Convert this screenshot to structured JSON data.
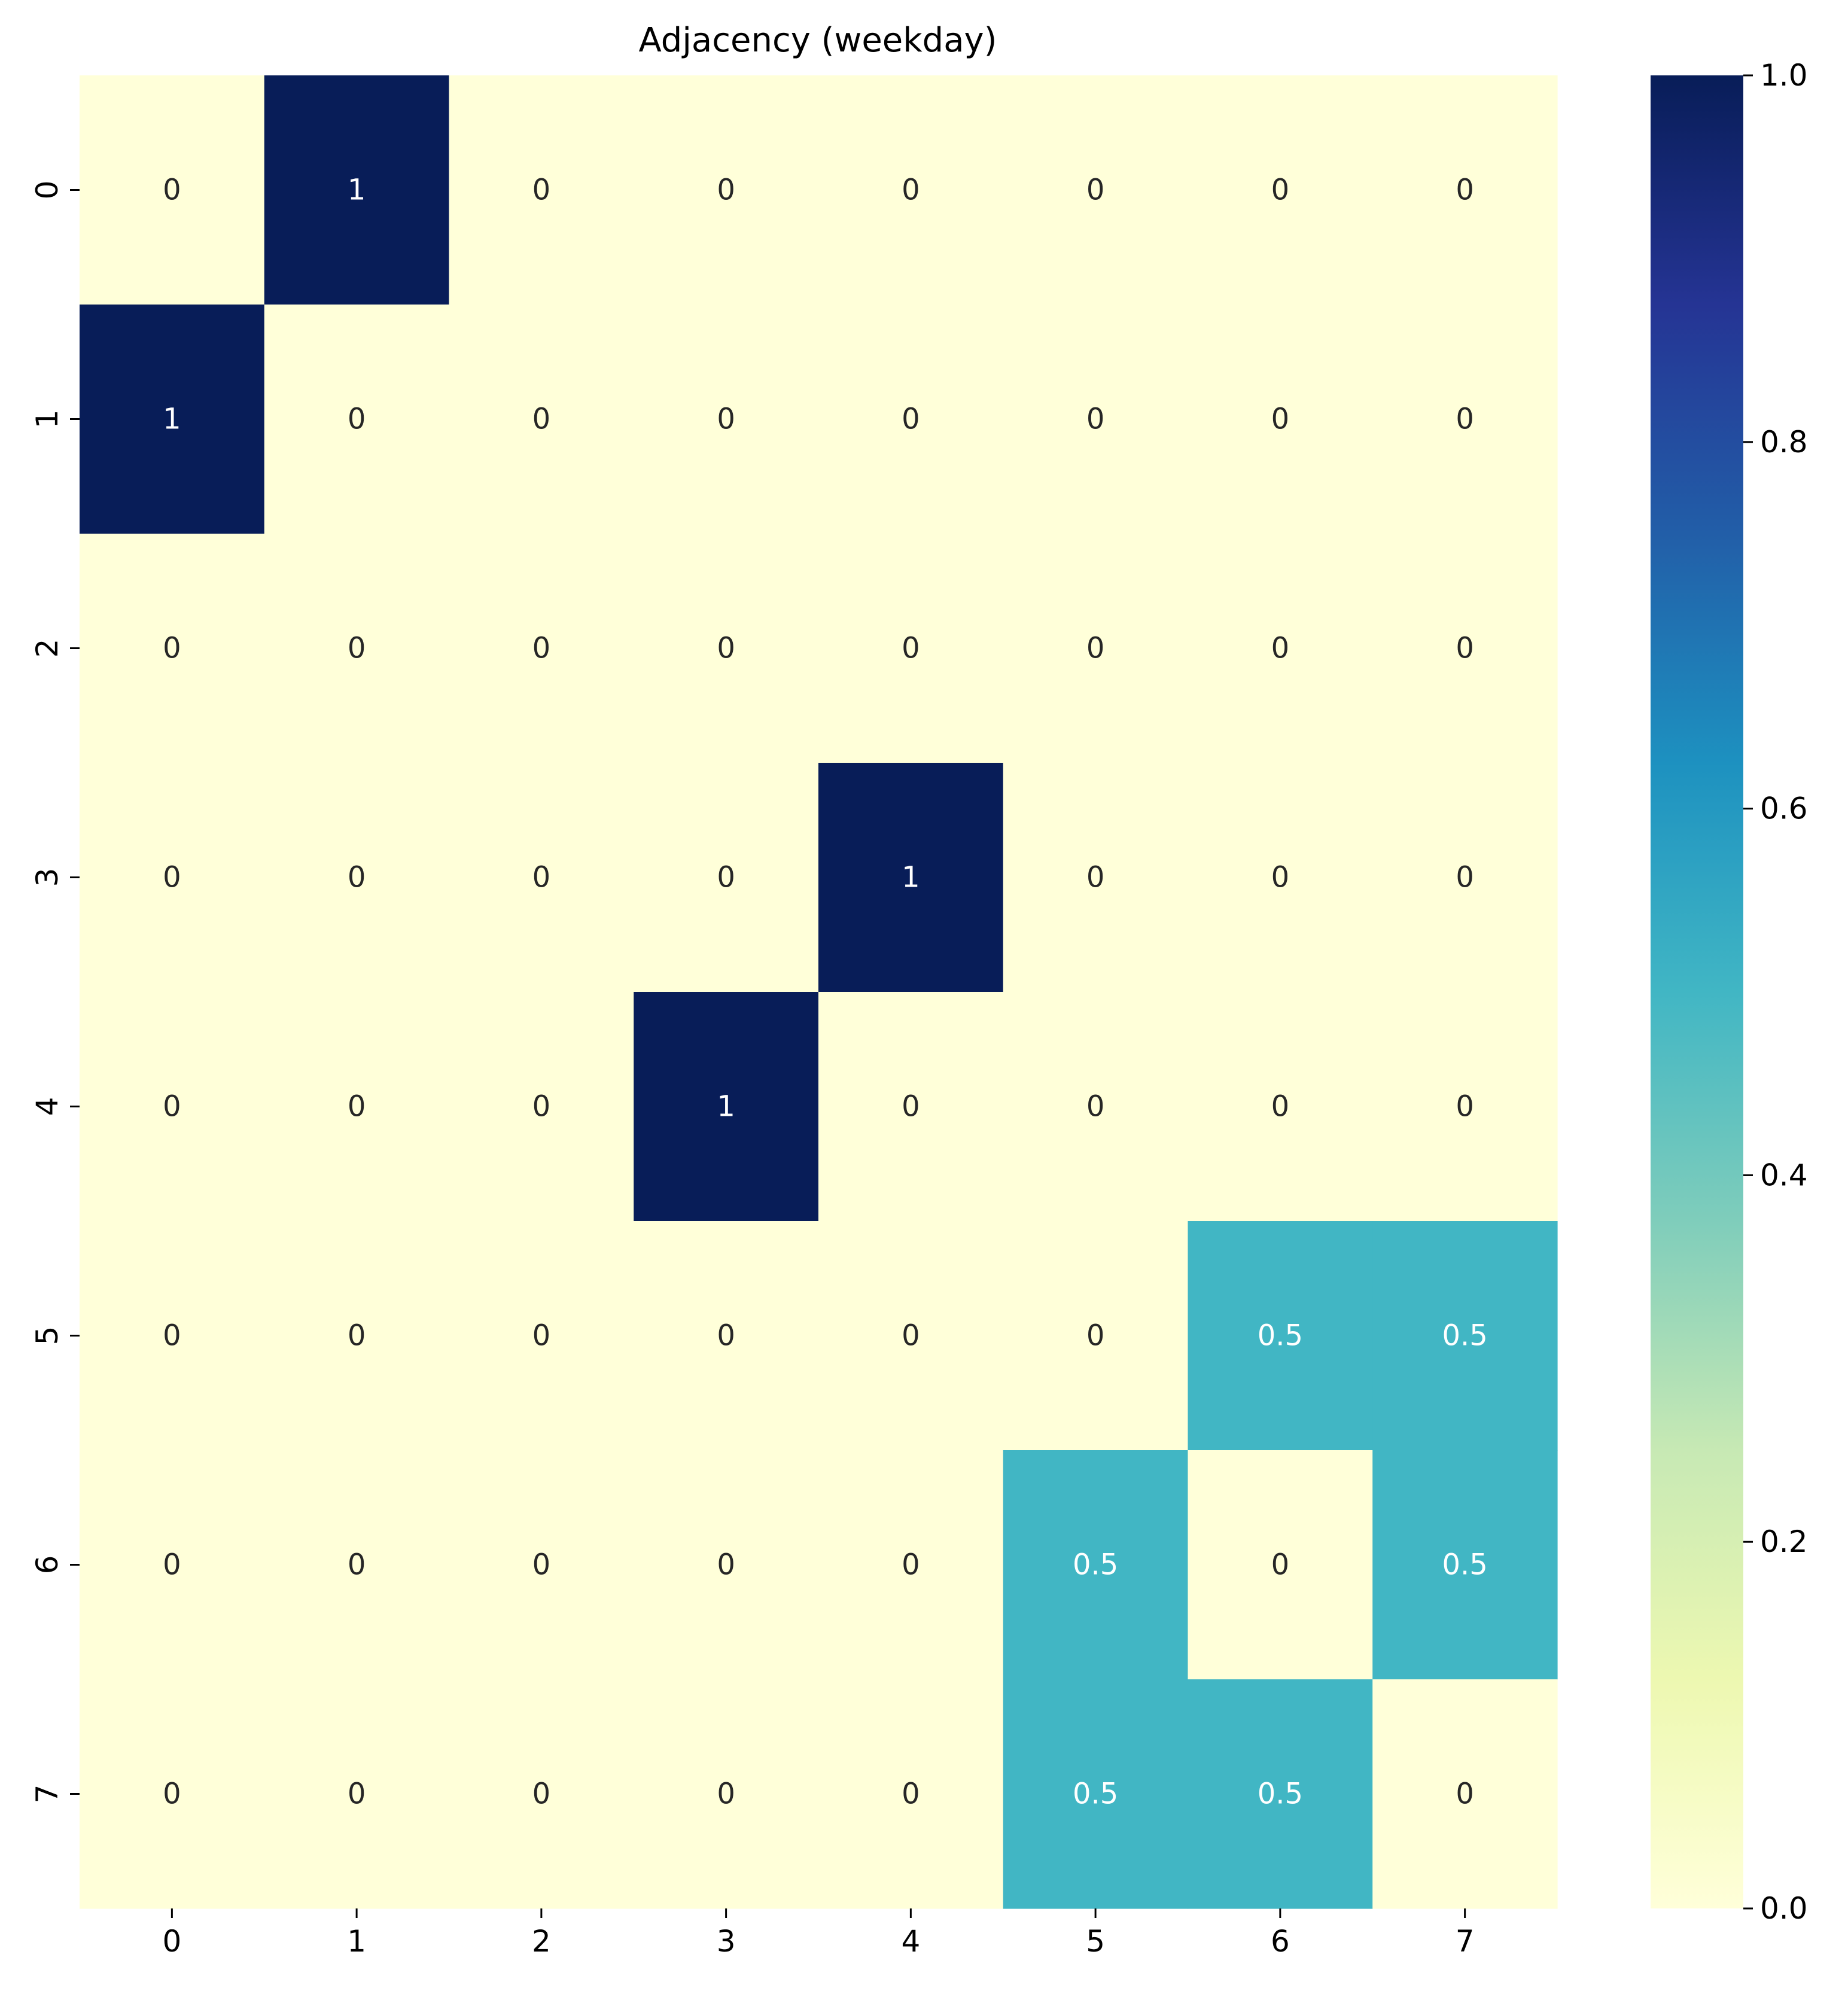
{
  "chart_data": {
    "type": "heatmap",
    "title": "Adjacency (weekday)",
    "x_tick_labels": [
      "0",
      "1",
      "2",
      "3",
      "4",
      "5",
      "6",
      "7"
    ],
    "y_tick_labels": [
      "0",
      "1",
      "2",
      "3",
      "4",
      "5",
      "6",
      "7"
    ],
    "values": [
      [
        0,
        1,
        0,
        0,
        0,
        0,
        0,
        0
      ],
      [
        1,
        0,
        0,
        0,
        0,
        0,
        0,
        0
      ],
      [
        0,
        0,
        0,
        0,
        0,
        0,
        0,
        0
      ],
      [
        0,
        0,
        0,
        0,
        1,
        0,
        0,
        0
      ],
      [
        0,
        0,
        0,
        1,
        0,
        0,
        0,
        0
      ],
      [
        0,
        0,
        0,
        0,
        0,
        0,
        0.5,
        0.5
      ],
      [
        0,
        0,
        0,
        0,
        0,
        0.5,
        0,
        0.5
      ],
      [
        0,
        0,
        0,
        0,
        0,
        0.5,
        0.5,
        0
      ]
    ],
    "cell_labels": [
      [
        "0",
        "1",
        "0",
        "0",
        "0",
        "0",
        "0",
        "0"
      ],
      [
        "1",
        "0",
        "0",
        "0",
        "0",
        "0",
        "0",
        "0"
      ],
      [
        "0",
        "0",
        "0",
        "0",
        "0",
        "0",
        "0",
        "0"
      ],
      [
        "0",
        "0",
        "0",
        "0",
        "1",
        "0",
        "0",
        "0"
      ],
      [
        "0",
        "0",
        "0",
        "1",
        "0",
        "0",
        "0",
        "0"
      ],
      [
        "0",
        "0",
        "0",
        "0",
        "0",
        "0",
        "0.5",
        "0.5"
      ],
      [
        "0",
        "0",
        "0",
        "0",
        "0",
        "0.5",
        "0",
        "0.5"
      ],
      [
        "0",
        "0",
        "0",
        "0",
        "0",
        "0.5",
        "0.5",
        "0"
      ]
    ],
    "colormap": "YlGnBu",
    "colormap_stops": [
      "#ffffd9",
      "#edf8b1",
      "#c7e9b4",
      "#7fcdbb",
      "#41b6c4",
      "#1d91c0",
      "#225ea8",
      "#253494",
      "#081d58"
    ],
    "annotation_text_colors": {
      "light_bg": "#262626",
      "dark_bg": "#ffffff"
    },
    "colorbar": {
      "range": [
        0,
        1
      ],
      "ticks": [
        0.0,
        0.2,
        0.4,
        0.6,
        0.8,
        1.0
      ],
      "tick_labels": [
        "0.0",
        "0.2",
        "0.4",
        "0.6",
        "0.8",
        "1.0"
      ],
      "position": "right"
    },
    "grid": false
  }
}
